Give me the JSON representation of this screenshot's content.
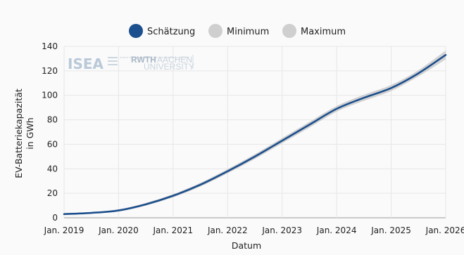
{
  "chart_data": {
    "type": "line",
    "xlabel": "Datum",
    "ylabel_line1": "EV-Batteriekapazität",
    "ylabel_line2": "in GWh",
    "ylim": [
      0,
      140
    ],
    "yticks": [
      0,
      20,
      40,
      60,
      80,
      100,
      120,
      140
    ],
    "xlim": [
      "2019-01",
      "2026-01"
    ],
    "xtick_labels": [
      "Jan. 2019",
      "Jan. 2020",
      "Jan. 2021",
      "Jan. 2022",
      "Jan. 2023",
      "Jan. 2024",
      "Jan. 2025",
      "Jan. 2026"
    ],
    "grid": "vertical-and-horizontal",
    "legend_position": "top-center",
    "series": [
      {
        "name": "Schätzung",
        "color": "#1c4f8d",
        "x": [
          "2019-01",
          "2019-07",
          "2020-01",
          "2020-07",
          "2021-01",
          "2021-07",
          "2022-01",
          "2022-07",
          "2023-01",
          "2023-07",
          "2024-01",
          "2024-07",
          "2025-01",
          "2025-07",
          "2026-01"
        ],
        "values": [
          3,
          4,
          6,
          11,
          18,
          27,
          38,
          50,
          63,
          76,
          89,
          98,
          106,
          118,
          133
        ]
      },
      {
        "name": "Minimum",
        "color": "#cfcfcf",
        "x": [
          "2019-01",
          "2019-07",
          "2020-01",
          "2020-07",
          "2021-01",
          "2021-07",
          "2022-01",
          "2022-07",
          "2023-01",
          "2023-07",
          "2024-01",
          "2024-07",
          "2025-01",
          "2025-07",
          "2026-01"
        ],
        "values": [
          3,
          4,
          5.6,
          10.4,
          17.2,
          26,
          36.8,
          48.6,
          61.4,
          74.2,
          87.2,
          96,
          104,
          116,
          130
        ]
      },
      {
        "name": "Maximum",
        "color": "#cfcfcf",
        "x": [
          "2019-01",
          "2019-07",
          "2020-01",
          "2020-07",
          "2021-01",
          "2021-07",
          "2022-01",
          "2022-07",
          "2023-01",
          "2023-07",
          "2024-01",
          "2024-07",
          "2025-01",
          "2025-07",
          "2026-01"
        ],
        "values": [
          3,
          4,
          6.4,
          11.6,
          18.8,
          28,
          39.2,
          51.4,
          64.6,
          77.8,
          90.8,
          100,
          108,
          120,
          136
        ]
      }
    ]
  },
  "logo": {
    "isea": "ISEA",
    "rwth": "RWTH",
    "aachen": "AACHEN",
    "university": "UNIVERSITY",
    "isea_subtext": "Institut für Stromrichtertechnik und Elektrische Antriebe"
  }
}
